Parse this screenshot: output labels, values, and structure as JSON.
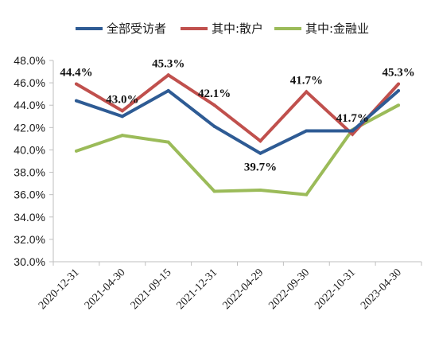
{
  "chart_data": {
    "type": "line",
    "categories": [
      "2020-12-31",
      "2021-04-30",
      "2021-09-15",
      "2021-12-31",
      "2022-04-29",
      "2022-09-30",
      "2022-10-31",
      "2023-04-30"
    ],
    "ylim": [
      30.0,
      48.0
    ],
    "yticks": [
      "30.0%",
      "32.0%",
      "34.0%",
      "36.0%",
      "38.0%",
      "40.0%",
      "42.0%",
      "44.0%",
      "46.0%",
      "48.0%"
    ],
    "grid": false,
    "legend_position": "top",
    "series": [
      {
        "name": "全部受访者",
        "color": "#2e5b94",
        "values": [
          44.4,
          43.0,
          45.3,
          42.1,
          39.7,
          41.7,
          41.7,
          45.3
        ],
        "labels": [
          "44.4%",
          "43.0%",
          "45.3%",
          "42.1%",
          "39.7%",
          "41.7%",
          "41.7%",
          "45.3%"
        ]
      },
      {
        "name": "其中:散户",
        "color": "#c0504d",
        "values": [
          45.9,
          43.5,
          46.7,
          44.0,
          40.8,
          45.2,
          41.4,
          45.9
        ]
      },
      {
        "name": "其中:金融业",
        "color": "#9bbb59",
        "values": [
          39.9,
          41.3,
          40.7,
          36.3,
          36.4,
          36.0,
          41.8,
          44.0
        ]
      }
    ]
  }
}
